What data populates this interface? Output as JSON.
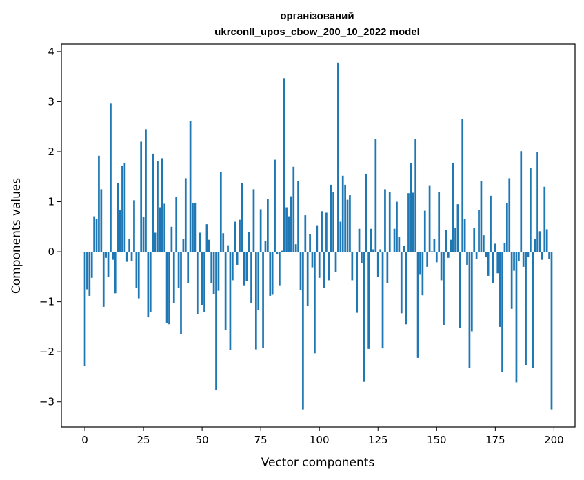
{
  "chart_data": {
    "type": "bar",
    "title_line1": "організований",
    "title_line2": "ukrconll_upos_cbow_200_10_2022 model",
    "xlabel": "Vector components",
    "ylabel": "Components values",
    "xlim": [
      -10,
      209
    ],
    "ylim": [
      -3.5,
      4.15
    ],
    "xticks": [
      0,
      25,
      50,
      75,
      100,
      125,
      150,
      175,
      200
    ],
    "yticks": [
      -3,
      -2,
      -1,
      0,
      1,
      2,
      3,
      4
    ],
    "bar_color": "#1f77b4",
    "grid": false,
    "values": [
      -2.28,
      -0.75,
      -0.88,
      -0.52,
      0.71,
      0.65,
      1.92,
      1.25,
      -1.1,
      -0.12,
      -0.5,
      2.96,
      -0.16,
      -0.83,
      1.38,
      0.84,
      1.72,
      1.78,
      -0.2,
      0.25,
      -0.19,
      1.03,
      -0.72,
      -0.93,
      2.2,
      0.69,
      2.45,
      -1.31,
      -1.2,
      1.96,
      0.38,
      1.82,
      0.89,
      1.87,
      0.96,
      -1.42,
      -1.45,
      0.5,
      -1.02,
      1.09,
      -0.72,
      -1.65,
      0.26,
      1.47,
      -0.62,
      2.62,
      0.97,
      0.98,
      -1.25,
      0.38,
      -1.06,
      -1.2,
      0.55,
      0.24,
      -0.63,
      -0.84,
      -2.77,
      -0.78,
      1.59,
      0.37,
      -1.56,
      0.13,
      -1.97,
      -0.57,
      0.6,
      -0.26,
      0.64,
      1.38,
      -0.67,
      -0.58,
      0.4,
      -1.03,
      1.25,
      -1.95,
      -1.17,
      0.85,
      -1.92,
      0.22,
      1.06,
      -0.88,
      -0.86,
      1.84,
      -0.04,
      -0.67,
      0.02,
      3.47,
      0.89,
      0.71,
      1.11,
      1.7,
      0.15,
      1.42,
      -0.77,
      -3.15,
      0.73,
      -1.08,
      0.35,
      -0.31,
      -2.03,
      0.53,
      -0.52,
      0.81,
      -0.72,
      0.78,
      -0.57,
      1.34,
      1.19,
      -0.4,
      3.78,
      0.6,
      1.52,
      1.34,
      1.04,
      1.13,
      -0.57,
      0.0,
      -1.22,
      0.46,
      -0.23,
      -2.6,
      1.56,
      -1.94,
      0.46,
      0.05,
      2.25,
      -0.5,
      0.05,
      -1.93,
      1.25,
      -0.63,
      1.19,
      0.0,
      0.46,
      1.0,
      0.29,
      -1.23,
      0.12,
      -1.45,
      1.17,
      1.77,
      1.18,
      2.26,
      -2.12,
      -0.46,
      -0.87,
      0.82,
      -0.3,
      1.33,
      0.01,
      0.25,
      -0.21,
      1.19,
      -0.57,
      -1.46,
      0.44,
      -0.12,
      0.24,
      1.78,
      0.47,
      0.95,
      -1.52,
      2.66,
      0.65,
      -0.26,
      -2.32,
      -1.59,
      0.48,
      -0.14,
      0.83,
      1.42,
      0.33,
      -0.11,
      -0.48,
      1.12,
      -0.63,
      0.16,
      -0.43,
      -1.5,
      -2.4,
      0.18,
      0.98,
      1.47,
      -1.14,
      -0.38,
      -2.61,
      -0.19,
      2.01,
      -0.3,
      -2.26,
      -0.11,
      1.68,
      -2.32,
      0.26,
      2.0,
      0.41,
      -0.16,
      1.3,
      0.45,
      -0.15,
      -3.15
    ]
  }
}
